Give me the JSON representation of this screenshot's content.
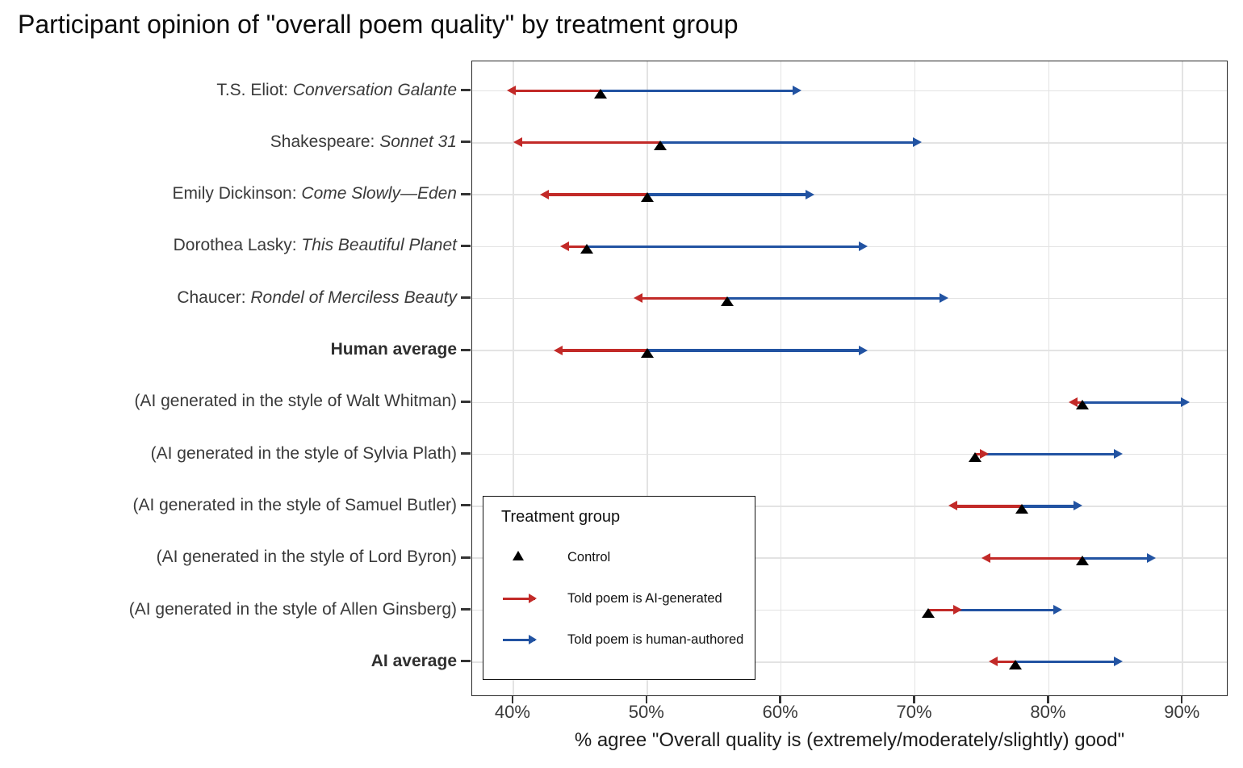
{
  "title": "Participant opinion of \"overall poem quality\" by treatment group",
  "colors": {
    "control": "#000000",
    "told_ai": "#c22a28",
    "told_human": "#2253a2",
    "gridline": "#e3e3e3",
    "axis_text": "#3a3a3a",
    "panel_border": "#2a2a2a"
  },
  "chart_data": {
    "type": "scatter",
    "subtype": "dumbbell-arrows",
    "title": "Participant opinion of \"overall poem quality\" by treatment group",
    "xlabel": "% agree \"Overall quality is (extremely/moderately/slightly) good\"",
    "ylabel": "",
    "grid": true,
    "xlim": [
      36.93,
      93.42
    ],
    "x_ticks": [
      {
        "value": 40,
        "label": "40%"
      },
      {
        "value": 50,
        "label": "50%"
      },
      {
        "value": 60,
        "label": "60%"
      },
      {
        "value": 70,
        "label": "70%"
      },
      {
        "value": 80,
        "label": "80%"
      },
      {
        "value": 90,
        "label": "90%"
      }
    ],
    "legend": {
      "position": "inside-bottom-left",
      "title": "Treatment group",
      "items": [
        {
          "label": "Control",
          "marker": "black-triangle"
        },
        {
          "label": "Told poem is AI-generated",
          "marker": "red-arrow"
        },
        {
          "label": "Told poem is human-authored",
          "marker": "blue-arrow"
        }
      ]
    },
    "rows": [
      {
        "prefix": "T.S. Eliot: ",
        "italic": "Conversation Galante",
        "bold": false,
        "control": 46.5,
        "told_ai": 39.5,
        "told_human": 61.5
      },
      {
        "prefix": "Shakespeare: ",
        "italic": "Sonnet 31",
        "bold": false,
        "control": 51,
        "told_ai": 40,
        "told_human": 70.5
      },
      {
        "prefix": "Emily Dickinson: ",
        "italic": "Come Slowly—Eden",
        "bold": false,
        "control": 50,
        "told_ai": 42,
        "told_human": 62.5
      },
      {
        "prefix": "Dorothea Lasky: ",
        "italic": "This Beautiful Planet",
        "bold": false,
        "control": 45.5,
        "told_ai": 43.5,
        "told_human": 66.5
      },
      {
        "prefix": "Chaucer: ",
        "italic": "Rondel of Merciless Beauty",
        "bold": false,
        "control": 56,
        "told_ai": 49,
        "told_human": 72.5
      },
      {
        "prefix": "Human average",
        "italic": "",
        "bold": true,
        "control": 50,
        "told_ai": 43,
        "told_human": 66.5
      },
      {
        "prefix": "(AI generated in the style of Walt Whitman)",
        "italic": "",
        "bold": false,
        "control": 82.5,
        "told_ai": 81.5,
        "told_human": 90.5
      },
      {
        "prefix": "(AI generated in the style of Sylvia Plath)",
        "italic": "",
        "bold": false,
        "control": 74.5,
        "told_ai": 75.5,
        "told_human": 85.5
      },
      {
        "prefix": "(AI generated in the style of Samuel Butler)",
        "italic": "",
        "bold": false,
        "control": 78,
        "told_ai": 72.5,
        "told_human": 82.5
      },
      {
        "prefix": "(AI generated in the style of Lord Byron)",
        "italic": "",
        "bold": false,
        "control": 82.5,
        "told_ai": 75,
        "told_human": 88
      },
      {
        "prefix": "(AI generated in the style of Allen Ginsberg)",
        "italic": "",
        "bold": false,
        "control": 71,
        "told_ai": 73.5,
        "told_human": 81
      },
      {
        "prefix": "AI average",
        "italic": "",
        "bold": true,
        "control": 77.5,
        "told_ai": 75.5,
        "told_human": 85.5
      }
    ]
  }
}
